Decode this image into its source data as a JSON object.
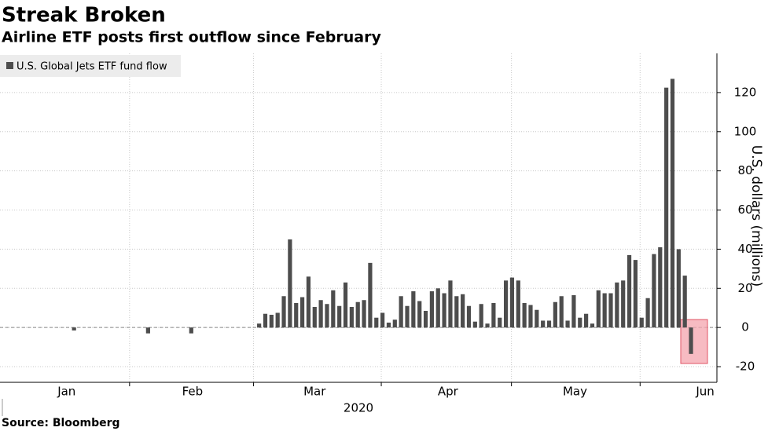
{
  "chart_data": {
    "type": "bar",
    "title": "Streak Broken",
    "subtitle": "Airline ETF posts first outflow since February",
    "source": "Source: Bloomberg",
    "x_label": "2020",
    "y_label": "U.S. dollars (millions)",
    "x": [
      12,
      24,
      31,
      42,
      43,
      44,
      45,
      46,
      47,
      48,
      49,
      50,
      51,
      52,
      53,
      54,
      55,
      56,
      57,
      58,
      59,
      60,
      61,
      62,
      63,
      64,
      65,
      66,
      67,
      68,
      69,
      70,
      71,
      72,
      73,
      74,
      75,
      76,
      77,
      78,
      79,
      80,
      81,
      82,
      83,
      84,
      85,
      86,
      87,
      88,
      89,
      90,
      91,
      92,
      93,
      94,
      95,
      96,
      97,
      98,
      99,
      100,
      101,
      102,
      103,
      104,
      105,
      106,
      107,
      108,
      109,
      110,
      111,
      112
    ],
    "series": [
      {
        "name": "U.S. Global Jets ETF fund flow",
        "color": "#4d4d4d",
        "values": [
          -1.5,
          -3,
          -3,
          2,
          7,
          6.5,
          7.5,
          16,
          45,
          12.5,
          15.5,
          26,
          10.5,
          14,
          12,
          19,
          11,
          23,
          10.5,
          13,
          14,
          33,
          5,
          7.5,
          2.5,
          4,
          16,
          11,
          18.5,
          13.5,
          8.5,
          18.5,
          20,
          17.5,
          24,
          16,
          17,
          11,
          3,
          12,
          2,
          12.5,
          5,
          24,
          25.5,
          24,
          12.5,
          11.5,
          9,
          3.5,
          3.5,
          13,
          16,
          3.5,
          16.5,
          5,
          7,
          2,
          19,
          17.5,
          17.5,
          23,
          24,
          37,
          34.5,
          5,
          15,
          37.5,
          41,
          122.5,
          127,
          40,
          26.5,
          -13.5
        ]
      }
    ],
    "xlim": [
      0,
      116.2
    ],
    "xticks": [
      {
        "value": 10.8,
        "label": "Jan"
      },
      {
        "value": 31.2,
        "label": "Feb"
      },
      {
        "value": 51,
        "label": "Mar"
      },
      {
        "value": 72.6,
        "label": "Apr"
      },
      {
        "value": 93.2,
        "label": "May"
      },
      {
        "value": 114.3,
        "label": "Jun"
      }
    ],
    "ylim": [
      -28,
      140
    ],
    "yticks": [
      -20,
      0,
      20,
      40,
      60,
      80,
      100,
      120
    ],
    "grid": true,
    "legend": "upper left"
  }
}
